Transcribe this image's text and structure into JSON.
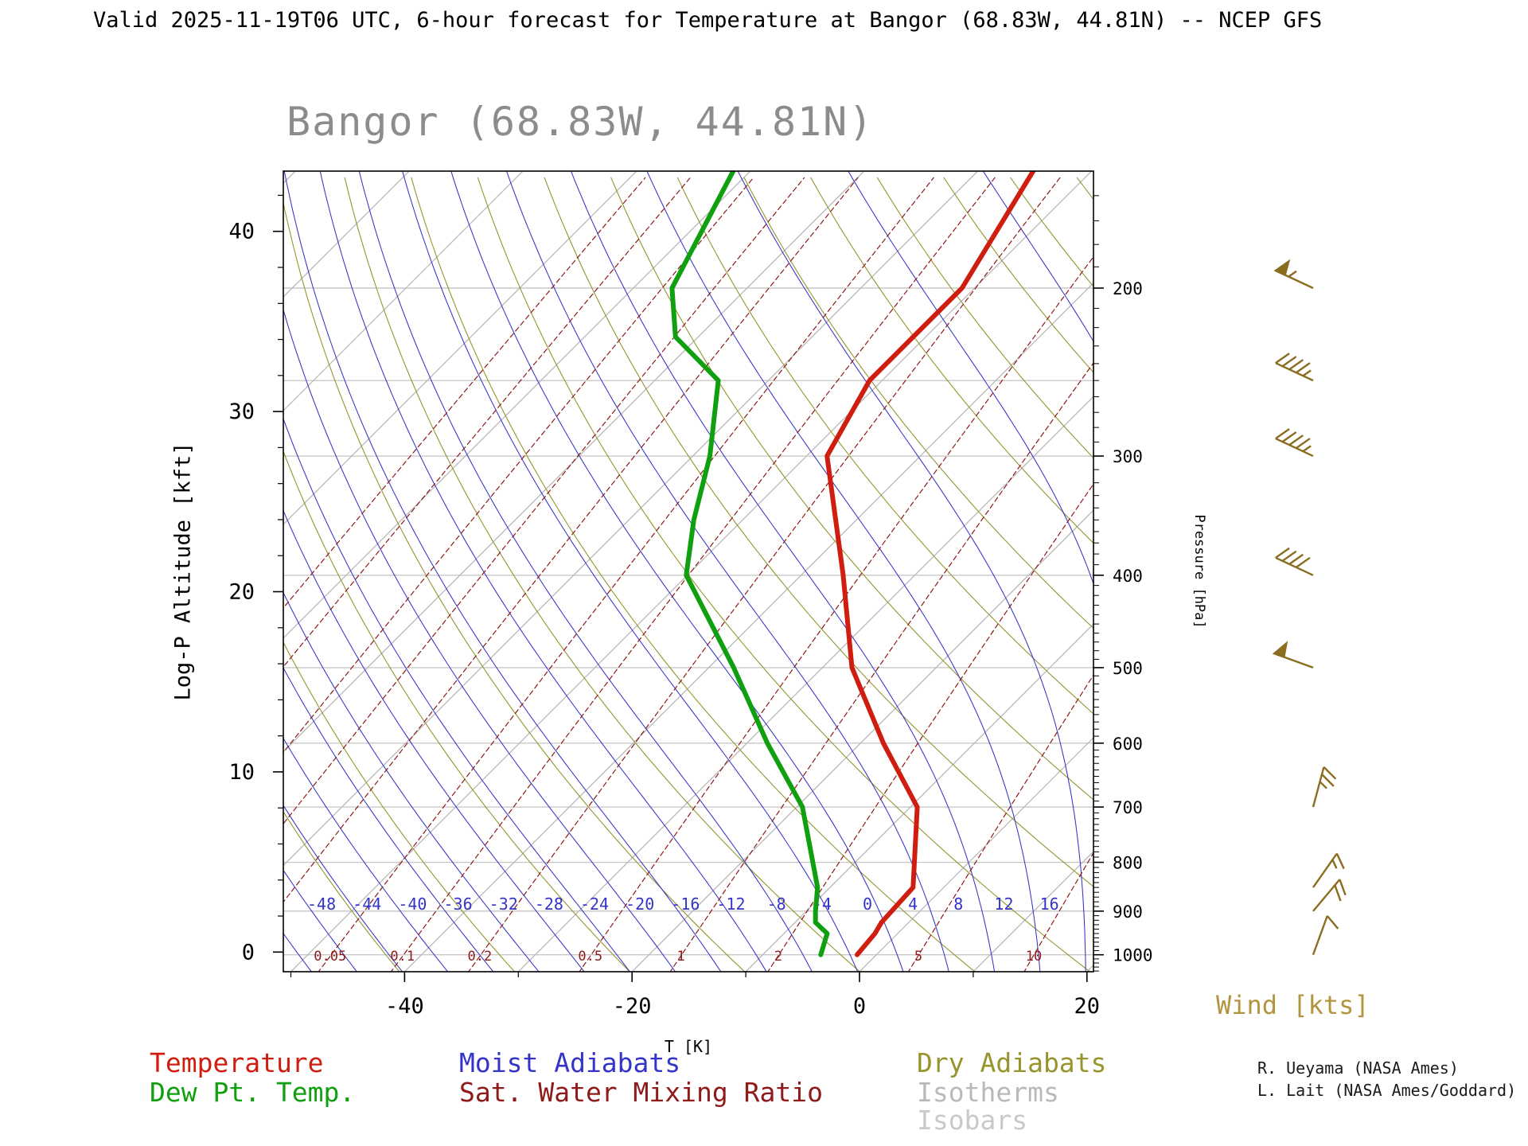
{
  "page": {
    "top_title": "Valid 2025-11-19T06 UTC, 6-hour forecast for Temperature at Bangor (68.83W, 44.81N) -- NCEP GFS",
    "chart_title": "Bangor (68.83W, 44.81N)",
    "wind_title": "Wind [kts]",
    "credit_line1": "R. Ueyama (NASA Ames)",
    "credit_line2": "L. Lait (NASA Ames/Goddard)"
  },
  "legend": {
    "temperature": "Temperature",
    "dew_point": "Dew Pt. Temp.",
    "moist_adiabats": "Moist Adiabats",
    "mixing_ratio": "Sat. Water Mixing Ratio",
    "dry_adiabats": "Dry Adiabats",
    "isotherms": "Isotherms",
    "isobars": "Isobars"
  },
  "axes": {
    "y_left_label": "Log-P Altitude [kft]",
    "y_left_ticks": [
      0,
      10,
      20,
      30,
      40
    ],
    "y_right_label": "Pressure [hPa]",
    "y_right_ticks": [
      200,
      300,
      400,
      500,
      600,
      700,
      800,
      900,
      1000
    ],
    "x_label": "T [K]",
    "x_ticks": [
      -40,
      -20,
      0,
      20
    ]
  },
  "colors": {
    "temperature": "#cf1d10",
    "dew_point": "#0f9f0f",
    "moist_adiabat": "#3434c8",
    "mixing_ratio": "#8e1a1a",
    "dry_adiabat": "#97942d",
    "isotherm": "#b9b9b9",
    "isobar": "#c9c9c9",
    "wind": "#8a6d1f",
    "wind_title": "#b3953f",
    "title": "#8c8c8c",
    "axis": "#000000"
  },
  "chart_data": {
    "type": "line",
    "title": "Bangor (68.83W, 44.81N)",
    "x_axis": {
      "label": "T [K]",
      "ticks": [
        -40,
        -20,
        0,
        20
      ]
    },
    "y_axis": {
      "label": "Log-P Altitude [kft]",
      "ticks": [
        0,
        10,
        20,
        30,
        40
      ],
      "right_label": "Pressure [hPa]",
      "pressure_ticks": [
        200,
        300,
        400,
        500,
        600,
        700,
        800,
        900,
        1000
      ]
    },
    "isobar_levels": [
      200,
      250,
      300,
      400,
      500,
      600,
      700,
      800,
      900,
      1000
    ],
    "isotherm_step_c": 10,
    "moist_adiabat_labels": [
      -48,
      -44,
      -40,
      -36,
      -32,
      -28,
      -24,
      -20,
      -16,
      -12,
      -8,
      -4,
      0,
      4,
      8,
      12,
      16
    ],
    "mixing_ratio_labels": [
      "0.05",
      "0.1",
      "0.2",
      "0.5",
      "1",
      "2",
      "5",
      "10"
    ],
    "mixing_ratio_lines": [
      0.001,
      0.002,
      0.005,
      0.01,
      0.02,
      0.05,
      0.1,
      0.2,
      0.5,
      1,
      2,
      5,
      10
    ],
    "series": [
      {
        "name": "Temperature",
        "color_key": "temperature",
        "points_p_hpa_t_c": [
          [
            1000,
            -1.7
          ],
          [
            950,
            -2.0
          ],
          [
            925,
            -2.4
          ],
          [
            850,
            -2.7
          ],
          [
            700,
            -9.4
          ],
          [
            600,
            -18.0
          ],
          [
            500,
            -27.4
          ],
          [
            400,
            -36.3
          ],
          [
            300,
            -48.2
          ],
          [
            250,
            -51.1
          ],
          [
            200,
            -51.1
          ],
          [
            150,
            -55.2
          ]
        ]
      },
      {
        "name": "Dew Pt. Temp.",
        "color_key": "dew_point",
        "points_p_hpa_t_c": [
          [
            1000,
            -4.9
          ],
          [
            950,
            -6.2
          ],
          [
            925,
            -8.2
          ],
          [
            900,
            -9.2
          ],
          [
            850,
            -11.1
          ],
          [
            700,
            -19.5
          ],
          [
            600,
            -28.2
          ],
          [
            500,
            -37.8
          ],
          [
            400,
            -50.1
          ],
          [
            350,
            -54.3
          ],
          [
            300,
            -58.5
          ],
          [
            250,
            -64.4
          ],
          [
            225,
            -72.0
          ],
          [
            200,
            -76.6
          ],
          [
            150,
            -81.6
          ]
        ]
      }
    ],
    "wind_barbs": [
      {
        "p": 200,
        "speed_kt": 55,
        "dir_deg": 295
      },
      {
        "p": 250,
        "speed_kt": 45,
        "dir_deg": 295
      },
      {
        "p": 300,
        "speed_kt": 45,
        "dir_deg": 295
      },
      {
        "p": 400,
        "speed_kt": 40,
        "dir_deg": 295
      },
      {
        "p": 500,
        "speed_kt": 50,
        "dir_deg": 290
      },
      {
        "p": 700,
        "speed_kt": 25,
        "dir_deg": 15
      },
      {
        "p": 850,
        "speed_kt": 15,
        "dir_deg": 35
      },
      {
        "p": 900,
        "speed_kt": 20,
        "dir_deg": 40
      },
      {
        "p": 1000,
        "speed_kt": 10,
        "dir_deg": 20
      }
    ]
  }
}
